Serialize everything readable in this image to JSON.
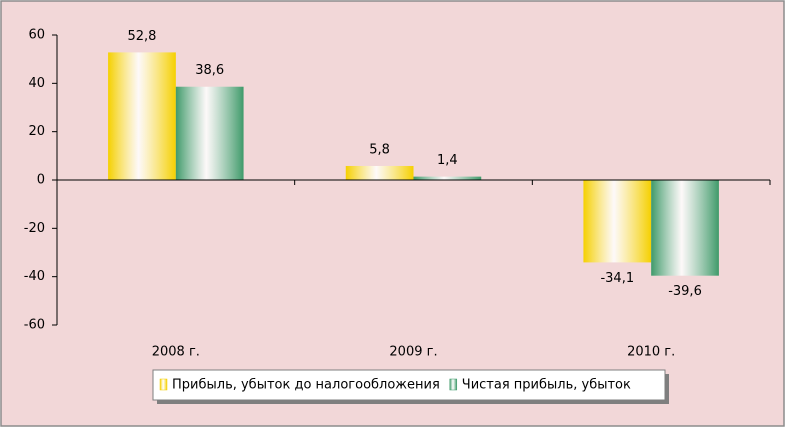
{
  "chart_data": {
    "type": "bar",
    "categories": [
      "2008 г.",
      "2009 г.",
      "2010 г."
    ],
    "series": [
      {
        "name": "Прибыль, убыток до налогообложения",
        "color": "#f5d000",
        "values": [
          52.8,
          5.8,
          -34.1
        ],
        "value_labels": [
          "52,8",
          "5,8",
          "-34,1"
        ]
      },
      {
        "name": "Чистая прибыль, убыток",
        "color": "#3f9a6a",
        "values": [
          38.6,
          1.4,
          -39.6
        ],
        "value_labels": [
          "38,6",
          "1,4",
          "-39,6"
        ]
      }
    ],
    "ylim": [
      -60,
      60
    ],
    "yticks": [
      -60,
      -40,
      -20,
      0,
      20,
      40,
      60
    ],
    "grid": false,
    "legend": "bottom"
  }
}
